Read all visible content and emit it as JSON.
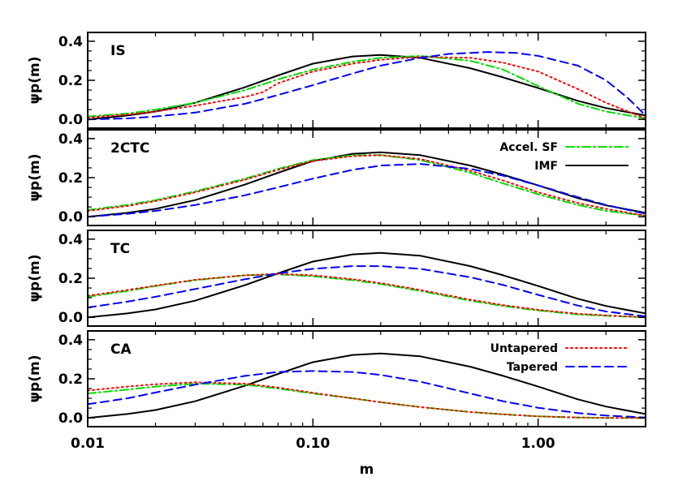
{
  "chart_data": {
    "type": "line",
    "xscale": "log",
    "xlim": [
      0.01,
      3.0
    ],
    "ylim": [
      -0.02,
      0.42
    ],
    "xlabel": "m",
    "ylabel": "ψp(m)",
    "x_ticks": [
      0.01,
      0.1,
      1.0
    ],
    "x_tick_labels": [
      "0.01",
      "0.10",
      "1.00"
    ],
    "y_ticks": [
      0.0,
      0.2,
      0.4
    ],
    "y_tick_labels": [
      "0.0",
      "0.2",
      "0.4"
    ],
    "series_styles": {
      "IMF": {
        "color": "#000000",
        "dash": "solid"
      },
      "Accel. SF": {
        "color": "#00dd00",
        "dash": "dashdot"
      },
      "Untapered": {
        "color": "#ff0000",
        "dash": "dotted"
      },
      "Tapered": {
        "color": "#0000ff",
        "dash": "dashed"
      }
    },
    "panels": [
      {
        "label": "IS",
        "legend": [],
        "series": [
          {
            "key": "IMF",
            "x": [
              0.01,
              0.015,
              0.02,
              0.03,
              0.05,
              0.07,
              0.1,
              0.15,
              0.2,
              0.3,
              0.5,
              0.7,
              1.0,
              1.5,
              2.0,
              3.0
            ],
            "y": [
              0.0,
              0.02,
              0.04,
              0.085,
              0.165,
              0.225,
              0.285,
              0.322,
              0.33,
              0.315,
              0.262,
              0.215,
              0.16,
              0.095,
              0.058,
              0.02
            ]
          },
          {
            "key": "Accel. SF",
            "x": [
              0.01,
              0.015,
              0.02,
              0.03,
              0.05,
              0.07,
              0.1,
              0.15,
              0.2,
              0.3,
              0.5,
              0.7,
              1.0,
              1.5,
              2.0,
              3.0
            ],
            "y": [
              0.015,
              0.03,
              0.05,
              0.085,
              0.15,
              0.205,
              0.255,
              0.295,
              0.315,
              0.325,
              0.3,
              0.255,
              0.17,
              0.08,
              0.04,
              0.005
            ]
          },
          {
            "key": "Untapered",
            "x": [
              0.01,
              0.015,
              0.02,
              0.03,
              0.05,
              0.06,
              0.07,
              0.1,
              0.15,
              0.2,
              0.3,
              0.5,
              0.7,
              1.0,
              1.5,
              2.0,
              3.0
            ],
            "y": [
              0.01,
              0.025,
              0.04,
              0.07,
              0.115,
              0.14,
              0.185,
              0.245,
              0.285,
              0.305,
              0.32,
              0.315,
              0.29,
              0.245,
              0.155,
              0.085,
              0.005
            ]
          },
          {
            "key": "Tapered",
            "x": [
              0.01,
              0.015,
              0.02,
              0.03,
              0.05,
              0.07,
              0.1,
              0.15,
              0.2,
              0.3,
              0.4,
              0.6,
              0.8,
              1.0,
              1.5,
              2.0,
              2.5,
              3.0
            ],
            "y": [
              0.0,
              0.005,
              0.015,
              0.035,
              0.08,
              0.125,
              0.175,
              0.235,
              0.275,
              0.315,
              0.335,
              0.345,
              0.34,
              0.325,
              0.275,
              0.2,
              0.11,
              0.02
            ]
          }
        ]
      },
      {
        "label": "2CTC",
        "legend": [
          "Accel. SF",
          "IMF"
        ],
        "series": [
          {
            "key": "IMF",
            "x": [
              0.01,
              0.015,
              0.02,
              0.03,
              0.05,
              0.07,
              0.1,
              0.15,
              0.2,
              0.3,
              0.5,
              0.7,
              1.0,
              1.5,
              2.0,
              3.0
            ],
            "y": [
              0.0,
              0.02,
              0.04,
              0.085,
              0.165,
              0.225,
              0.285,
              0.322,
              0.33,
              0.315,
              0.262,
              0.215,
              0.16,
              0.095,
              0.058,
              0.02
            ]
          },
          {
            "key": "Accel. SF",
            "x": [
              0.01,
              0.015,
              0.02,
              0.03,
              0.05,
              0.07,
              0.1,
              0.15,
              0.2,
              0.3,
              0.5,
              0.7,
              1.0,
              1.5,
              2.0,
              3.0
            ],
            "y": [
              0.035,
              0.06,
              0.085,
              0.13,
              0.195,
              0.245,
              0.29,
              0.315,
              0.315,
              0.29,
              0.225,
              0.17,
              0.115,
              0.06,
              0.03,
              0.005
            ]
          },
          {
            "key": "Untapered",
            "x": [
              0.01,
              0.015,
              0.02,
              0.03,
              0.05,
              0.07,
              0.1,
              0.15,
              0.2,
              0.3,
              0.5,
              0.7,
              1.0,
              1.5,
              2.0,
              3.0
            ],
            "y": [
              0.03,
              0.055,
              0.08,
              0.125,
              0.19,
              0.24,
              0.285,
              0.31,
              0.315,
              0.295,
              0.235,
              0.185,
              0.125,
              0.07,
              0.04,
              0.005
            ]
          },
          {
            "key": "Tapered",
            "x": [
              0.01,
              0.015,
              0.02,
              0.03,
              0.05,
              0.07,
              0.1,
              0.15,
              0.2,
              0.3,
              0.5,
              0.7,
              1.0,
              1.5,
              2.0,
              3.0
            ],
            "y": [
              0.0,
              0.015,
              0.03,
              0.06,
              0.11,
              0.15,
              0.195,
              0.24,
              0.262,
              0.27,
              0.245,
              0.21,
              0.16,
              0.1,
              0.06,
              0.015
            ]
          }
        ]
      },
      {
        "label": "TC",
        "legend": [],
        "series": [
          {
            "key": "IMF",
            "x": [
              0.01,
              0.015,
              0.02,
              0.03,
              0.05,
              0.07,
              0.1,
              0.15,
              0.2,
              0.3,
              0.5,
              0.7,
              1.0,
              1.5,
              2.0,
              3.0
            ],
            "y": [
              0.0,
              0.02,
              0.04,
              0.085,
              0.165,
              0.225,
              0.285,
              0.322,
              0.33,
              0.315,
              0.262,
              0.215,
              0.16,
              0.095,
              0.058,
              0.02
            ]
          },
          {
            "key": "Accel. SF",
            "x": [
              0.01,
              0.015,
              0.02,
              0.03,
              0.05,
              0.07,
              0.1,
              0.15,
              0.2,
              0.3,
              0.5,
              0.7,
              1.0,
              1.5,
              2.0,
              3.0
            ],
            "y": [
              0.105,
              0.135,
              0.16,
              0.19,
              0.215,
              0.22,
              0.21,
              0.19,
              0.17,
              0.135,
              0.085,
              0.058,
              0.035,
              0.015,
              0.008,
              0.0
            ]
          },
          {
            "key": "Untapered",
            "x": [
              0.01,
              0.015,
              0.02,
              0.03,
              0.05,
              0.07,
              0.1,
              0.15,
              0.2,
              0.3,
              0.5,
              0.7,
              1.0,
              1.5,
              2.0,
              3.0
            ],
            "y": [
              0.11,
              0.14,
              0.162,
              0.192,
              0.215,
              0.222,
              0.215,
              0.195,
              0.175,
              0.14,
              0.09,
              0.062,
              0.038,
              0.018,
              0.01,
              0.0
            ]
          },
          {
            "key": "Tapered",
            "x": [
              0.01,
              0.015,
              0.02,
              0.03,
              0.05,
              0.07,
              0.1,
              0.15,
              0.2,
              0.3,
              0.5,
              0.7,
              1.0,
              1.5,
              2.0,
              3.0
            ],
            "y": [
              0.05,
              0.08,
              0.105,
              0.145,
              0.195,
              0.225,
              0.248,
              0.262,
              0.262,
              0.248,
              0.205,
              0.165,
              0.115,
              0.06,
              0.03,
              0.005
            ]
          }
        ]
      },
      {
        "label": "CA",
        "legend": [
          "Untapered",
          "Tapered"
        ],
        "series": [
          {
            "key": "IMF",
            "x": [
              0.01,
              0.015,
              0.02,
              0.03,
              0.05,
              0.07,
              0.1,
              0.15,
              0.2,
              0.3,
              0.5,
              0.7,
              1.0,
              1.5,
              2.0,
              3.0
            ],
            "y": [
              0.0,
              0.02,
              0.04,
              0.085,
              0.165,
              0.225,
              0.285,
              0.322,
              0.33,
              0.315,
              0.262,
              0.215,
              0.16,
              0.095,
              0.058,
              0.02
            ]
          },
          {
            "key": "Accel. SF",
            "x": [
              0.01,
              0.015,
              0.02,
              0.03,
              0.05,
              0.07,
              0.1,
              0.15,
              0.2,
              0.3,
              0.5,
              0.7,
              1.0,
              1.5,
              2.0,
              3.0
            ],
            "y": [
              0.125,
              0.145,
              0.16,
              0.175,
              0.17,
              0.15,
              0.125,
              0.1,
              0.08,
              0.055,
              0.03,
              0.018,
              0.008,
              0.002,
              0.0,
              0.0
            ]
          },
          {
            "key": "Untapered",
            "x": [
              0.01,
              0.015,
              0.02,
              0.03,
              0.05,
              0.07,
              0.1,
              0.15,
              0.2,
              0.3,
              0.5,
              0.7,
              1.0,
              1.5,
              2.0,
              3.0
            ],
            "y": [
              0.14,
              0.16,
              0.172,
              0.182,
              0.175,
              0.155,
              0.128,
              0.1,
              0.08,
              0.055,
              0.03,
              0.018,
              0.008,
              0.002,
              0.0,
              0.0
            ]
          },
          {
            "key": "Tapered",
            "x": [
              0.01,
              0.015,
              0.02,
              0.03,
              0.05,
              0.07,
              0.1,
              0.15,
              0.2,
              0.3,
              0.5,
              0.7,
              1.0,
              1.5,
              2.0,
              3.0
            ],
            "y": [
              0.07,
              0.1,
              0.13,
              0.17,
              0.215,
              0.235,
              0.24,
              0.235,
              0.22,
              0.185,
              0.125,
              0.085,
              0.052,
              0.025,
              0.012,
              0.002
            ]
          }
        ]
      }
    ]
  }
}
